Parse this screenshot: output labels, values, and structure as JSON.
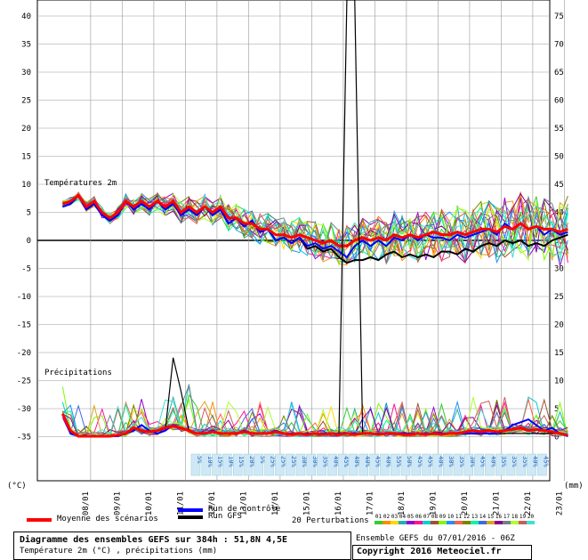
{
  "chart_data": {
    "type": "line",
    "left_axis": {
      "unit": "(°C)",
      "ticks": [
        40,
        35,
        30,
        25,
        20,
        15,
        10,
        5,
        0,
        -5,
        -10,
        -15,
        -20,
        -25,
        -30,
        -35
      ]
    },
    "right_axis": {
      "unit": "(mm)",
      "ticks": [
        75,
        70,
        65,
        60,
        55,
        50,
        45,
        40,
        35,
        30,
        25,
        20,
        15,
        10,
        5,
        0
      ]
    },
    "x_ticks": [
      "08/01",
      "09/01",
      "10/01",
      "11/01",
      "12/01",
      "13/01",
      "14/01",
      "15/01",
      "16/01",
      "17/01",
      "18/01",
      "19/01",
      "20/01",
      "21/01",
      "22/01",
      "23/01"
    ],
    "panel_labels": {
      "temperature": "Températures 2m",
      "precip": "Précipitations"
    },
    "probabilities": [
      "5%",
      "10%",
      "15%",
      "10%",
      "15%",
      "20%",
      "5%",
      "25%",
      "25%",
      "25%",
      "30%",
      "30%",
      "35%",
      "40%",
      "45%",
      "40%",
      "40%",
      "45%",
      "40%",
      "55%",
      "50%",
      "45%",
      "45%",
      "40%",
      "30%",
      "35%",
      "30%",
      "45%",
      "40%",
      "35%",
      "35%",
      "35%",
      "40%",
      "45%"
    ],
    "temperature": {
      "x_days": [
        0,
        0.25,
        0.5,
        0.75,
        1,
        1.25,
        1.5,
        1.75,
        2,
        2.25,
        2.5,
        2.75,
        3,
        3.25,
        3.5,
        3.75,
        4,
        4.25,
        4.5,
        4.75,
        5,
        5.25,
        5.5,
        5.75,
        6,
        6.25,
        6.5,
        6.75,
        7,
        7.25,
        7.5,
        7.75,
        8,
        8.25,
        8.5,
        8.75,
        9,
        9.25,
        9.5,
        9.75,
        10,
        10.25,
        10.5,
        10.75,
        11,
        11.25,
        11.5,
        11.75,
        12,
        12.25,
        12.5,
        12.75,
        13,
        13.25,
        13.5,
        13.75,
        14,
        14.25,
        14.5,
        14.75,
        15,
        15.25,
        15.5,
        15.75,
        16
      ],
      "mean": [
        6.5,
        7,
        8,
        6,
        7,
        5,
        4,
        5,
        7,
        6,
        7,
        6,
        7,
        6,
        7,
        5,
        6,
        5,
        6,
        5,
        6,
        4,
        4,
        3,
        3,
        2,
        2,
        1,
        1,
        0.5,
        1,
        0.5,
        0,
        -0.5,
        0,
        -1,
        -1,
        0,
        0.5,
        0,
        0.5,
        0,
        1,
        0.5,
        1,
        0.5,
        1,
        1.5,
        1,
        1,
        1.5,
        1,
        1.5,
        2,
        2,
        1.5,
        2.5,
        2,
        3,
        2,
        2.5,
        2,
        2,
        1.5,
        2
      ],
      "control": [
        6,
        6.5,
        8,
        5.5,
        6.5,
        4.5,
        3.5,
        4.5,
        7,
        5.5,
        6.5,
        5.5,
        7,
        5.5,
        6.5,
        4.5,
        5.5,
        4.5,
        6,
        4.5,
        5.5,
        3,
        4,
        2.5,
        3.5,
        1.5,
        2,
        0,
        0.5,
        -0.5,
        0.5,
        -1,
        -0.5,
        -1.5,
        -1,
        -2,
        -3,
        -1,
        0,
        -1,
        0,
        -1,
        0.5,
        0,
        1,
        0,
        1,
        0.5,
        0.5,
        0,
        1,
        0.5,
        1,
        1.5,
        2,
        1,
        3,
        2,
        3,
        2,
        2.5,
        1,
        2,
        1,
        1.5
      ],
      "gfs": [
        6,
        6.5,
        8,
        5.5,
        6.5,
        4.5,
        3.5,
        4.5,
        7,
        5.5,
        6.5,
        5.5,
        7,
        5.5,
        6.5,
        4.5,
        5.5,
        4.5,
        6,
        4.5,
        5.5,
        3,
        4,
        2.5,
        3.5,
        1.5,
        2,
        0,
        0.5,
        -0.5,
        0.5,
        -1.5,
        -1,
        -2,
        -1.5,
        -3,
        -4,
        -3.5,
        -3.5,
        -3,
        -3.5,
        -2.5,
        -2,
        -3,
        -2.5,
        -3,
        -2.5,
        -3,
        -2,
        -2,
        -2.5,
        -1.5,
        -2,
        -1,
        -0.5,
        -1,
        0,
        -0.5,
        0,
        -1,
        -0.5,
        -1,
        0,
        0.5,
        1
      ]
    },
    "precipitation": {
      "x_days": [
        0,
        0.25,
        0.5,
        0.75,
        1,
        1.25,
        1.5,
        1.75,
        2,
        2.25,
        2.5,
        2.75,
        3,
        3.25,
        3.5,
        3.75,
        4,
        4.25,
        4.5,
        4.75,
        5,
        5.25,
        5.5,
        5.75,
        6,
        6.25,
        6.5,
        6.75,
        7,
        7.25,
        7.5,
        7.75,
        8,
        8.25,
        8.5,
        8.75,
        9,
        9.25,
        9.5,
        9.75,
        10,
        10.25,
        10.5,
        10.75,
        11,
        11.25,
        11.5,
        11.75,
        12,
        12.25,
        12.5,
        12.75,
        13,
        13.25,
        13.5,
        13.75,
        14,
        14.25,
        14.5,
        14.75,
        15,
        15.25,
        15.5,
        15.75,
        16
      ],
      "mean": [
        4,
        1,
        0,
        0,
        0,
        0,
        0,
        0.2,
        0.5,
        1.5,
        1,
        0.8,
        1,
        1.5,
        1.8,
        1.5,
        1,
        0.5,
        0.5,
        0.8,
        0.5,
        0.5,
        0.5,
        0.8,
        0.5,
        0.5,
        0.5,
        0.8,
        0.5,
        0.3,
        0.5,
        0.3,
        0.5,
        0.3,
        0.5,
        0.3,
        0.5,
        0.3,
        0.5,
        0.5,
        0.3,
        0.5,
        0.5,
        0.3,
        0.3,
        0.5,
        0.3,
        0.5,
        0.3,
        0.5,
        0.5,
        0.8,
        1,
        0.8,
        1,
        0.8,
        1,
        1.2,
        1.5,
        1,
        1.2,
        1,
        0.8,
        0.5,
        0.2
      ],
      "control": [
        4,
        0.5,
        0,
        0,
        0,
        0,
        0,
        0,
        0.5,
        1,
        2,
        1,
        0.5,
        1,
        2,
        1.5,
        1,
        0.5,
        0.5,
        1,
        0.5,
        0.5,
        0.5,
        1,
        0.5,
        0.5,
        0.5,
        1,
        0.5,
        0.5,
        0.5,
        0.5,
        0.5,
        0.5,
        0.5,
        0.5,
        0.5,
        0.5,
        0.5,
        0.5,
        0.5,
        0.5,
        0.5,
        0.5,
        0.5,
        0.5,
        0.5,
        0.5,
        0.5,
        0.5,
        0.5,
        0.5,
        0.5,
        0.5,
        0.5,
        0.5,
        1,
        2,
        2.5,
        3,
        2,
        1,
        1.5,
        0.5,
        0
      ],
      "gfs": [
        4,
        0.5,
        0,
        0,
        0,
        0,
        0,
        0,
        0.5,
        1,
        2,
        1,
        0.5,
        1,
        14,
        8,
        1,
        0.5,
        0.5,
        1,
        0.5,
        0.5,
        0.5,
        1,
        0.5,
        0.5,
        0.5,
        1,
        0.5,
        0.5,
        0.5,
        0.5,
        0.5,
        0.5,
        0.5,
        0.5,
        80,
        80,
        0.5,
        0.5,
        0.5,
        0.5,
        0.5,
        0.5,
        0.5,
        0.5,
        0.5,
        0.5,
        0.5,
        0.5,
        0.5,
        0.5,
        0.5,
        0.5,
        0.5,
        0.5,
        0.5,
        0.5,
        0.5,
        0.5,
        0.5,
        0.5,
        0.5,
        0.5,
        0
      ]
    }
  },
  "legend": {
    "mean_label": "Moyenne des scénarios",
    "control_label": "Run de contrôle",
    "gfs_label": "Run GFS",
    "perturb_label": "20 Perturbations",
    "perturb_ids": [
      "01",
      "02",
      "03",
      "04",
      "05",
      "06",
      "07",
      "08",
      "09",
      "10",
      "11",
      "12",
      "13",
      "14",
      "15",
      "16",
      "17",
      "18",
      "19",
      "20"
    ],
    "perturb_colors": [
      "#32cd32",
      "#ff8c00",
      "#ffd700",
      "#20b2aa",
      "#9400d3",
      "#ff1493",
      "#00ced1",
      "#a0522d",
      "#7cfc00",
      "#1e90ff",
      "#ff6347",
      "#808000",
      "#00fa9a",
      "#4169e1",
      "#daa520",
      "#8b008b",
      "#708090",
      "#adff2f",
      "#cd5c5c",
      "#40e0d0"
    ],
    "mean_color": "#ff0000",
    "control_color": "#0000ff",
    "gfs_color": "#000000"
  },
  "footer": {
    "title": "Diagramme des ensembles GEFS sur 384h : 51,8N 4,5E",
    "subtitle": "Température 2m (°C) , précipitations (mm)",
    "run_info": "Ensemble GEFS du 07/01/2016 - 06Z",
    "copyright": "Copyright 2016 Meteociel.fr"
  }
}
